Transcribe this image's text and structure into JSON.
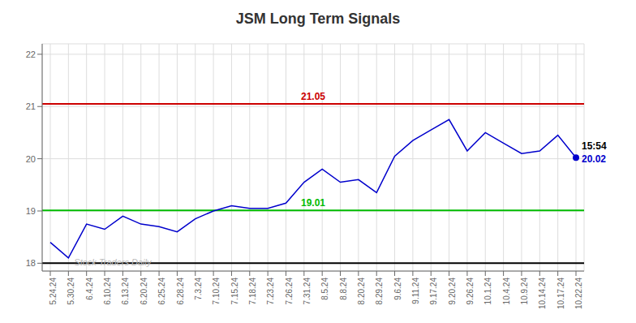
{
  "chart_data": {
    "type": "line",
    "title": "JSM Long Term Signals",
    "categories": [
      "5.24.24",
      "5.30.24",
      "6.4.24",
      "6.10.24",
      "6.13.24",
      "6.20.24",
      "6.25.24",
      "6.28.24",
      "7.3.24",
      "7.10.24",
      "7.15.24",
      "7.18.24",
      "7.23.24",
      "7.26.24",
      "7.31.24",
      "8.5.24",
      "8.8.24",
      "8.20.24",
      "8.29.24",
      "9.6.24",
      "9.11.24",
      "9.17.24",
      "9.20.24",
      "9.26.24",
      "10.1.24",
      "10.4.24",
      "10.9.24",
      "10.14.24",
      "10.17.24",
      "10.22.24"
    ],
    "values": [
      18.4,
      18.1,
      18.75,
      18.65,
      18.9,
      18.75,
      18.7,
      18.6,
      18.85,
      19.0,
      19.1,
      19.05,
      19.05,
      19.15,
      19.55,
      19.8,
      19.55,
      19.6,
      19.35,
      20.05,
      20.35,
      20.55,
      20.75,
      20.15,
      20.5,
      20.3,
      20.1,
      20.15,
      20.45,
      20.02
    ],
    "color": "#0000cc",
    "ylim": [
      17.85,
      22.2
    ],
    "yticks": [
      18,
      19,
      20,
      21,
      22
    ],
    "grid": true,
    "reference_lines": [
      {
        "value": 21.05,
        "label": "21.05",
        "color": "#cc0000"
      },
      {
        "value": 19.01,
        "label": "19.01",
        "color": "#00bb00"
      },
      {
        "value": 18,
        "color": "#000000"
      }
    ],
    "annotations": [
      {
        "text": "15:54",
        "x": "10.22.24",
        "y": 20.02,
        "position": "above",
        "color": "#000000"
      },
      {
        "text": "20.02",
        "x": "10.22.24",
        "y": 20.02,
        "position": "right",
        "color": "#0000cc"
      },
      {
        "text": "Stock Traders Daily",
        "x": "5.30.24",
        "y": 18.05,
        "position": "right",
        "color": "#bbbbbb"
      }
    ]
  }
}
